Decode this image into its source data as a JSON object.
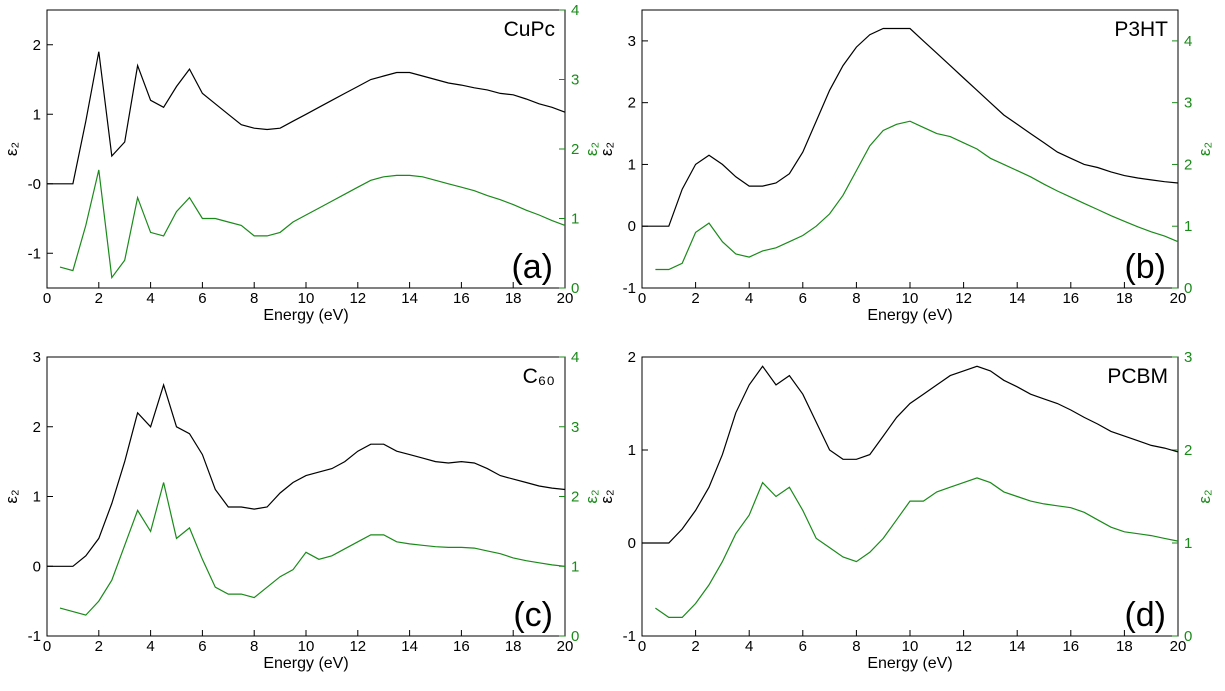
{
  "chart_data": [
    {
      "type": "line",
      "title": "CuPc",
      "annotation": "(a)",
      "xlabel": "Energy (eV)",
      "ylabel": "ε₂",
      "y2label": "ε₂",
      "x": [
        0,
        0.5,
        1,
        1.5,
        2,
        2.5,
        3,
        3.5,
        4,
        4.5,
        5,
        5.5,
        6,
        6.5,
        7,
        7.5,
        8,
        8.5,
        9,
        9.5,
        10,
        10.5,
        11,
        11.5,
        12,
        12.5,
        13,
        13.5,
        14,
        14.5,
        15,
        15.5,
        16,
        16.5,
        17,
        17.5,
        18,
        18.5,
        19,
        19.5,
        20
      ],
      "xlim": [
        0,
        20
      ],
      "xticks": [
        0,
        2,
        4,
        6,
        8,
        10,
        12,
        14,
        16,
        18,
        20
      ],
      "ylim": [
        -1.5,
        2.5
      ],
      "yticks": [
        -1,
        {
          "value": 0,
          "label": "-0"
        },
        1,
        2
      ],
      "y2lim": [
        0,
        4
      ],
      "y2ticks": [
        0,
        1,
        2,
        3,
        4
      ],
      "series": [
        {
          "color": "#000000",
          "values": [
            0,
            0,
            0,
            0.9,
            1.9,
            0.4,
            0.6,
            1.7,
            1.2,
            1.1,
            1.4,
            1.65,
            1.3,
            1.15,
            1.0,
            0.85,
            0.8,
            0.78,
            0.8,
            0.9,
            1.0,
            1.1,
            1.2,
            1.3,
            1.4,
            1.5,
            1.55,
            1.6,
            1.6,
            1.55,
            1.5,
            1.45,
            1.42,
            1.38,
            1.35,
            1.3,
            1.28,
            1.22,
            1.15,
            1.1,
            1.03
          ]
        },
        {
          "color": "#1a8a1a",
          "axis": "y2",
          "values": [
            null,
            0.3,
            0.25,
            0.9,
            1.7,
            0.15,
            0.4,
            1.3,
            0.8,
            0.75,
            1.1,
            1.3,
            1.0,
            1.0,
            0.95,
            0.9,
            0.75,
            0.75,
            0.8,
            0.95,
            1.05,
            1.15,
            1.25,
            1.35,
            1.45,
            1.55,
            1.6,
            1.62,
            1.62,
            1.6,
            1.55,
            1.5,
            1.45,
            1.4,
            1.33,
            1.27,
            1.2,
            1.12,
            1.05,
            0.97,
            0.9
          ]
        }
      ]
    },
    {
      "type": "line",
      "title": "P3HT",
      "annotation": "(b)",
      "xlabel": "Energy (eV)",
      "ylabel": "ε₂",
      "y2label": "ε₂",
      "x": [
        0,
        0.5,
        1,
        1.5,
        2,
        2.5,
        3,
        3.5,
        4,
        4.5,
        5,
        5.5,
        6,
        6.5,
        7,
        7.5,
        8,
        8.5,
        9,
        9.5,
        10,
        10.5,
        11,
        11.5,
        12,
        12.5,
        13,
        13.5,
        14,
        14.5,
        15,
        15.5,
        16,
        16.5,
        17,
        17.5,
        18,
        18.5,
        19,
        19.5,
        20
      ],
      "xlim": [
        0,
        20
      ],
      "xticks": [
        0,
        2,
        4,
        6,
        8,
        10,
        12,
        14,
        16,
        18,
        20
      ],
      "ylim": [
        -1,
        3.5
      ],
      "yticks": [
        -1,
        0,
        1,
        2,
        3
      ],
      "y2lim": [
        0,
        4.5
      ],
      "y2ticks": [
        0,
        1,
        2,
        3,
        4
      ],
      "series": [
        {
          "color": "#000000",
          "values": [
            0,
            0,
            0,
            0.6,
            1.0,
            1.15,
            1.0,
            0.8,
            0.65,
            0.65,
            0.7,
            0.85,
            1.2,
            1.7,
            2.2,
            2.6,
            2.9,
            3.1,
            3.2,
            3.2,
            3.2,
            3.0,
            2.8,
            2.6,
            2.4,
            2.2,
            2.0,
            1.8,
            1.65,
            1.5,
            1.35,
            1.2,
            1.1,
            1.0,
            0.95,
            0.88,
            0.82,
            0.78,
            0.75,
            0.72,
            0.7
          ]
        },
        {
          "color": "#1a8a1a",
          "axis": "y2",
          "values": [
            null,
            0.3,
            0.3,
            0.4,
            0.9,
            1.05,
            0.75,
            0.55,
            0.5,
            0.6,
            0.65,
            0.75,
            0.85,
            1.0,
            1.2,
            1.5,
            1.9,
            2.3,
            2.55,
            2.65,
            2.7,
            2.6,
            2.5,
            2.45,
            2.35,
            2.25,
            2.1,
            2.0,
            1.9,
            1.8,
            1.68,
            1.57,
            1.47,
            1.37,
            1.27,
            1.17,
            1.08,
            0.99,
            0.91,
            0.84,
            0.75
          ]
        }
      ]
    },
    {
      "type": "line",
      "title": "C₆₀",
      "annotation": "(c)",
      "xlabel": "Energy (eV)",
      "ylabel": "ε₂",
      "y2label": "ε₂",
      "x": [
        0,
        0.5,
        1,
        1.5,
        2,
        2.5,
        3,
        3.5,
        4,
        4.5,
        5,
        5.5,
        6,
        6.5,
        7,
        7.5,
        8,
        8.5,
        9,
        9.5,
        10,
        10.5,
        11,
        11.5,
        12,
        12.5,
        13,
        13.5,
        14,
        14.5,
        15,
        15.5,
        16,
        16.5,
        17,
        17.5,
        18,
        18.5,
        19,
        19.5,
        20
      ],
      "xlim": [
        0,
        20
      ],
      "xticks": [
        0,
        2,
        4,
        6,
        8,
        10,
        12,
        14,
        16,
        18,
        20
      ],
      "ylim": [
        -1,
        3
      ],
      "yticks": [
        -1,
        0,
        1,
        2,
        3
      ],
      "y2lim": [
        0,
        4
      ],
      "y2ticks": [
        0,
        1,
        2,
        3,
        4
      ],
      "series": [
        {
          "color": "#000000",
          "values": [
            0,
            0,
            0,
            0.15,
            0.4,
            0.9,
            1.5,
            2.2,
            2.0,
            2.6,
            2.0,
            1.9,
            1.6,
            1.1,
            0.85,
            0.85,
            0.82,
            0.85,
            1.05,
            1.2,
            1.3,
            1.35,
            1.4,
            1.5,
            1.65,
            1.75,
            1.75,
            1.65,
            1.6,
            1.55,
            1.5,
            1.48,
            1.5,
            1.48,
            1.4,
            1.3,
            1.25,
            1.2,
            1.15,
            1.12,
            1.1
          ]
        },
        {
          "color": "#1a8a1a",
          "axis": "y2",
          "values": [
            null,
            0.4,
            0.35,
            0.3,
            0.5,
            0.8,
            1.3,
            1.8,
            1.5,
            2.2,
            1.4,
            1.55,
            1.1,
            0.7,
            0.6,
            0.6,
            0.55,
            0.7,
            0.85,
            0.95,
            1.2,
            1.1,
            1.15,
            1.25,
            1.35,
            1.45,
            1.45,
            1.35,
            1.32,
            1.3,
            1.28,
            1.27,
            1.27,
            1.26,
            1.22,
            1.18,
            1.12,
            1.08,
            1.05,
            1.02,
            1.0
          ]
        }
      ]
    },
    {
      "type": "line",
      "title": "PCBM",
      "annotation": "(d)",
      "xlabel": "Energy (eV)",
      "ylabel": "ε₂",
      "y2label": "ε₂",
      "x": [
        0,
        0.5,
        1,
        1.5,
        2,
        2.5,
        3,
        3.5,
        4,
        4.5,
        5,
        5.5,
        6,
        6.5,
        7,
        7.5,
        8,
        8.5,
        9,
        9.5,
        10,
        10.5,
        11,
        11.5,
        12,
        12.5,
        13,
        13.5,
        14,
        14.5,
        15,
        15.5,
        16,
        16.5,
        17,
        17.5,
        18,
        18.5,
        19,
        19.5,
        20
      ],
      "xlim": [
        0,
        20
      ],
      "xticks": [
        0,
        2,
        4,
        6,
        8,
        10,
        12,
        14,
        16,
        18,
        20
      ],
      "ylim": [
        -1,
        2
      ],
      "yticks": [
        -1,
        0,
        1,
        2
      ],
      "y2lim": [
        0,
        3
      ],
      "y2ticks": [
        0,
        1,
        2,
        3
      ],
      "series": [
        {
          "color": "#000000",
          "values": [
            0,
            0,
            0,
            0.15,
            0.35,
            0.6,
            0.95,
            1.4,
            1.7,
            1.9,
            1.7,
            1.8,
            1.6,
            1.3,
            1.0,
            0.9,
            0.9,
            0.95,
            1.15,
            1.35,
            1.5,
            1.6,
            1.7,
            1.8,
            1.85,
            1.9,
            1.85,
            1.75,
            1.68,
            1.6,
            1.55,
            1.5,
            1.43,
            1.35,
            1.28,
            1.2,
            1.15,
            1.1,
            1.05,
            1.02,
            0.98
          ]
        },
        {
          "color": "#1a8a1a",
          "axis": "y2",
          "values": [
            null,
            0.3,
            0.2,
            0.2,
            0.35,
            0.55,
            0.8,
            1.1,
            1.3,
            1.65,
            1.5,
            1.6,
            1.35,
            1.05,
            0.95,
            0.85,
            0.8,
            0.9,
            1.05,
            1.25,
            1.45,
            1.45,
            1.55,
            1.6,
            1.65,
            1.7,
            1.65,
            1.55,
            1.5,
            1.45,
            1.42,
            1.4,
            1.38,
            1.33,
            1.25,
            1.17,
            1.12,
            1.1,
            1.08,
            1.05,
            1.02
          ]
        }
      ]
    }
  ]
}
